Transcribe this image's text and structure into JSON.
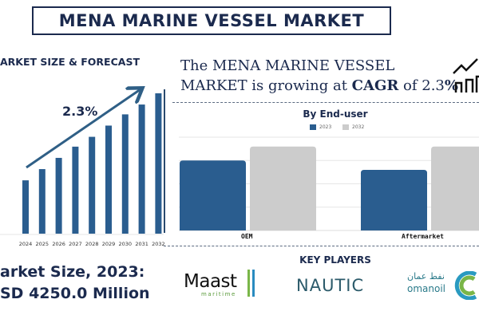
{
  "title": "MENA MARINE VESSEL MARKET",
  "forecast": {
    "heading": "ARKET SIZE & FORECAST",
    "cagr_label": "2.3%"
  },
  "headline": {
    "line1": "The MENA MARINE VESSEL",
    "line2_pre": "MARKET is growing at ",
    "line2_bold": "CAGR",
    "line2_mid": " of 2.3",
    "line2_pct": "%"
  },
  "market_size": {
    "label": "arket Size, 2023:",
    "value": "SD 4250.0 Million"
  },
  "key_players": {
    "heading": "KEY PLAYERS",
    "logos": [
      {
        "name": "Maast",
        "sub": "maritime"
      },
      {
        "name": "NAUTIC"
      },
      {
        "name": "omanoil",
        "arabic": "نفط عمان"
      }
    ]
  },
  "colors": {
    "primary": "#2a5d8f",
    "secondary": "#cccccc",
    "text": "#1b2a4e"
  },
  "chart_data": [
    {
      "type": "bar",
      "title": "",
      "categories": [
        "2024",
        "2025",
        "2026",
        "2027",
        "2028",
        "2029",
        "2030",
        "2031",
        "2032"
      ],
      "values": [
        38,
        46,
        54,
        62,
        69,
        77,
        85,
        92,
        100
      ],
      "ylim": [
        0,
        100
      ],
      "grid": false,
      "annotation": "2.3%"
    },
    {
      "type": "bar",
      "title": "By End-user",
      "categories": [
        "OEM",
        "Aftermarket"
      ],
      "series": [
        {
          "name": "2023",
          "values": [
            3.0,
            2.6
          ],
          "color": "#2a5d8f"
        },
        {
          "name": "2032",
          "values": [
            3.6,
            3.6
          ],
          "color": "#cccccc"
        }
      ],
      "ylim": [
        0,
        4
      ],
      "grid": true,
      "legend": "top"
    }
  ]
}
